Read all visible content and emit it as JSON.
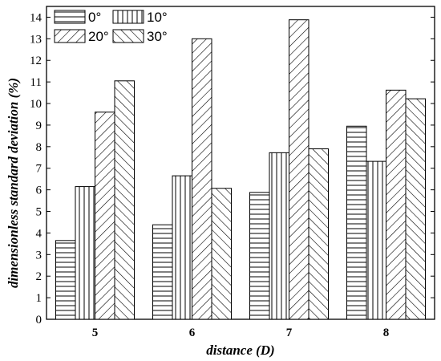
{
  "chart_data": {
    "type": "bar",
    "categories": [
      "5",
      "6",
      "7",
      "8"
    ],
    "series": [
      {
        "name": "0°",
        "pattern": "horizontal",
        "values": [
          3.65,
          4.38,
          5.88,
          8.95
        ]
      },
      {
        "name": "10°",
        "pattern": "vertical",
        "values": [
          6.15,
          6.65,
          7.72,
          7.32
        ]
      },
      {
        "name": "20°",
        "pattern": "diagonal-up",
        "values": [
          9.6,
          13.0,
          13.88,
          10.62
        ]
      },
      {
        "name": "30°",
        "pattern": "diagonal-down",
        "values": [
          11.05,
          6.07,
          7.9,
          10.22
        ]
      }
    ],
    "xlabel": "distance (D)",
    "ylabel": "dimensionless standard deviation (%)",
    "ylim": [
      0,
      14.5
    ],
    "yticks": [
      0,
      1,
      2,
      3,
      4,
      5,
      6,
      7,
      8,
      9,
      10,
      11,
      12,
      13,
      14
    ],
    "grid": false,
    "legend_position": "top-left"
  }
}
